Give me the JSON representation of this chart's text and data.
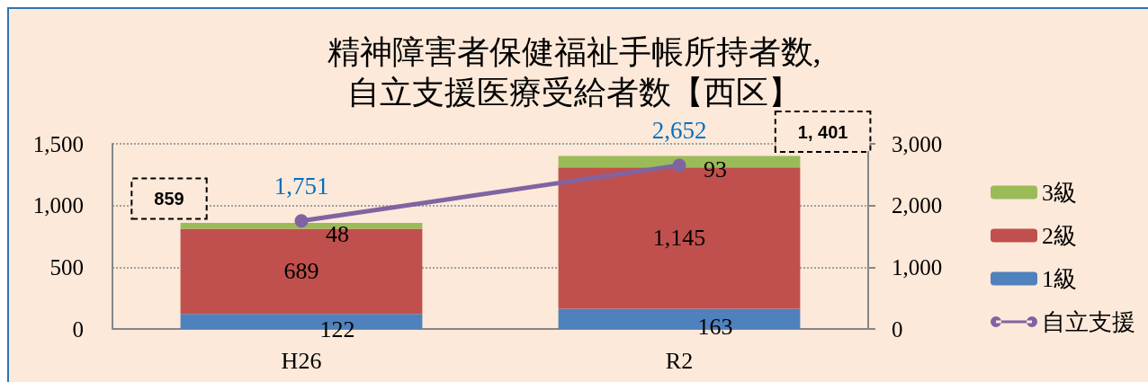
{
  "chart_data": {
    "type": "bar",
    "title": "精神障害者保健福祉手帳所持者数,\n自立支援医療受給者数【西区】",
    "categories": [
      "H26",
      "R2"
    ],
    "stacked": true,
    "series": [
      {
        "name": "1級",
        "color": "#4f81bd",
        "values": [
          122,
          163
        ],
        "value_labels": [
          "122",
          "163"
        ]
      },
      {
        "name": "2級",
        "color": "#c0504d",
        "values": [
          689,
          1145
        ],
        "value_labels": [
          "689",
          "1,145"
        ]
      },
      {
        "name": "3級",
        "color": "#9bbb59",
        "values": [
          48,
          93
        ],
        "value_labels": [
          "48",
          "93"
        ]
      },
      {
        "name": "自立支援",
        "type": "line",
        "axis": "y2",
        "color": "#8064a2",
        "marker": "circle",
        "values": [
          1751,
          2652
        ],
        "value_labels": [
          "1,751",
          "2,652"
        ]
      }
    ],
    "ylim": [
      0,
      1500
    ],
    "yticks": [
      0,
      500,
      {
        "value": 1000,
        "label": "1,000"
      },
      {
        "value": 1500,
        "label": "1,500"
      }
    ],
    "y2lim": [
      0,
      3000
    ],
    "y2ticks": [
      0,
      {
        "value": 1000,
        "label": "1,000"
      },
      {
        "value": 2000,
        "label": "2,000"
      },
      {
        "value": 3000,
        "label": "3,000"
      }
    ],
    "grid": "y",
    "legend": "right",
    "totals": [
      "859",
      "1, 401"
    ]
  }
}
